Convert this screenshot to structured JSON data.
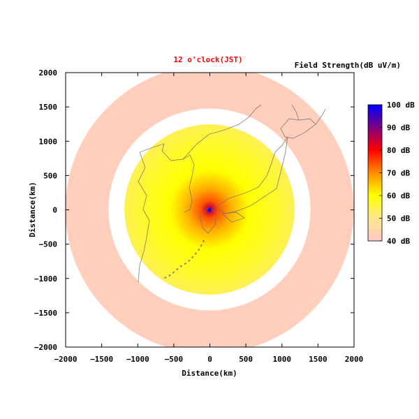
{
  "chart_data": {
    "type": "heatmap",
    "title": "12 o'clock(JST)",
    "title_color": "#ff0000",
    "colorbar_title": "Field Strength(dB uV/m)",
    "xlabel": "Distance(km)",
    "ylabel": "Distance(km)",
    "xlim": [
      -2000,
      2000
    ],
    "ylim": [
      -2000,
      2000
    ],
    "xticks": [
      -2000,
      -1500,
      -1000,
      -500,
      0,
      500,
      1000,
      1500,
      2000
    ],
    "yticks": [
      -2000,
      -1500,
      -1000,
      -500,
      0,
      500,
      1000,
      1500,
      2000
    ],
    "colorbar": {
      "range": [
        40,
        100
      ],
      "ticks": [
        40,
        50,
        60,
        70,
        80,
        90,
        100
      ],
      "tick_labels": [
        "40 dB",
        "50 dB",
        "60 dB",
        "70 dB",
        "80 dB",
        "90 dB",
        "100 dB"
      ],
      "stops": [
        {
          "value": 40,
          "color": "#ffc8c8"
        },
        {
          "value": 50,
          "color": "#ffe68c"
        },
        {
          "value": 60,
          "color": "#ffff00"
        },
        {
          "value": 70,
          "color": "#ff8c00"
        },
        {
          "value": 80,
          "color": "#ff0000"
        },
        {
          "value": 90,
          "color": "#800080"
        },
        {
          "value": 100,
          "color": "#0000ff"
        }
      ]
    },
    "field_profile": [
      {
        "distance_km": 0,
        "db": 100
      },
      {
        "distance_km": 30,
        "db": 85
      },
      {
        "distance_km": 120,
        "db": 74
      },
      {
        "distance_km": 300,
        "db": 67
      },
      {
        "distance_km": 550,
        "db": 60
      },
      {
        "distance_km": 900,
        "db": 57
      },
      {
        "distance_km": 1180,
        "db": 54
      }
    ],
    "skip_zone_km": [
      1180,
      1400
    ],
    "outer_ring_km": [
      1400,
      2000
    ],
    "outer_ring_db": 42,
    "map_overlay": "Japan and Korea coastlines"
  }
}
